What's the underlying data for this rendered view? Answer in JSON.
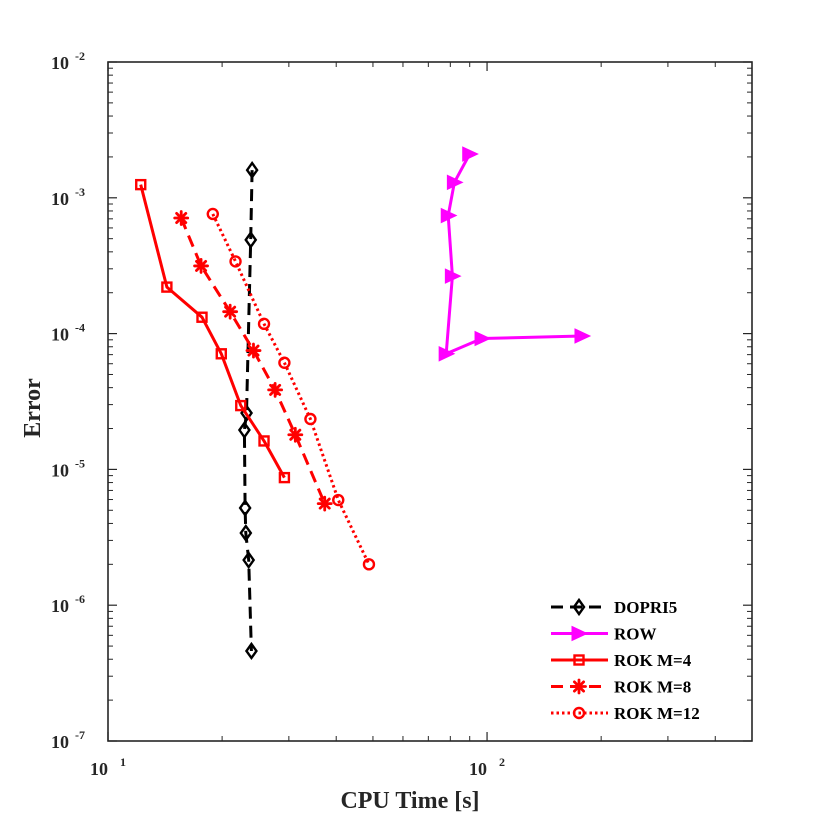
{
  "chart_data": {
    "type": "line",
    "title": "",
    "xlabel": "CPU Time [s]",
    "ylabel": "Error",
    "xscale": "log",
    "yscale": "log",
    "xlim": [
      10,
      500
    ],
    "ylim": [
      1e-07,
      0.01
    ],
    "grid": false,
    "legend_position": "bottom-right",
    "x_ticks": [
      {
        "value": 10,
        "base": "10",
        "exp": "1"
      },
      {
        "value": 100,
        "base": "10",
        "exp": "2"
      }
    ],
    "y_ticks": [
      {
        "value": 0.01,
        "base": "10",
        "exp": "-2"
      },
      {
        "value": 0.001,
        "base": "10",
        "exp": "-3"
      },
      {
        "value": 0.0001,
        "base": "10",
        "exp": "-4"
      },
      {
        "value": 1e-05,
        "base": "10",
        "exp": "-5"
      },
      {
        "value": 1e-06,
        "base": "10",
        "exp": "-6"
      },
      {
        "value": 1e-07,
        "base": "10",
        "exp": "-7"
      }
    ],
    "series": [
      {
        "name": "DOPRI5",
        "color": "#000000",
        "dash": "dashed",
        "marker": "diamond",
        "x": [
          24.0,
          23.8,
          23.2,
          22.9,
          23.0,
          23.1,
          23.5,
          23.9
        ],
        "y": [
          0.0016,
          0.00049,
          2.6e-05,
          1.95e-05,
          5.2e-06,
          3.4e-06,
          2.15e-06,
          4.6e-07
        ]
      },
      {
        "name": "ROW",
        "color": "#ff00ff",
        "dash": "solid",
        "marker": "triangle-right",
        "x": [
          90,
          82,
          79,
          81,
          78,
          97,
          178
        ],
        "y": [
          0.0021,
          0.0013,
          0.00074,
          0.000265,
          7.1e-05,
          9.2e-05,
          9.6e-05
        ]
      },
      {
        "name": "ROK M=4",
        "color": "#ff0000",
        "dash": "solid",
        "marker": "square",
        "x": [
          12.2,
          14.3,
          17.7,
          19.9,
          22.4,
          25.8,
          29.2
        ],
        "y": [
          0.00125,
          0.00022,
          0.000132,
          7.1e-05,
          2.95e-05,
          1.62e-05,
          8.7e-06
        ]
      },
      {
        "name": "ROK M=8",
        "color": "#ff0000",
        "dash": "dashed",
        "marker": "asterisk",
        "x": [
          15.6,
          17.6,
          21.0,
          24.2,
          27.6,
          31.2,
          37.3
        ],
        "y": [
          0.00071,
          0.000315,
          0.000145,
          7.5e-05,
          3.85e-05,
          1.8e-05,
          5.6e-06
        ]
      },
      {
        "name": "ROK M=12",
        "color": "#ff0000",
        "dash": "dotted",
        "marker": "circle",
        "x": [
          18.9,
          21.7,
          25.8,
          29.2,
          34.2,
          40.5,
          48.8
        ],
        "y": [
          0.00076,
          0.00034,
          0.000118,
          6.1e-05,
          2.35e-05,
          5.95e-06,
          2e-06
        ]
      }
    ]
  }
}
